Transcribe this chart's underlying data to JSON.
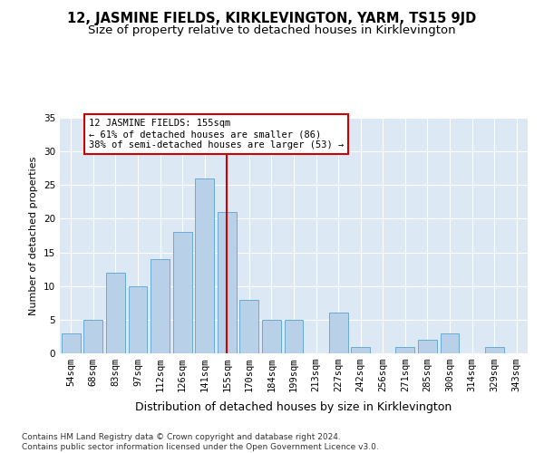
{
  "title": "12, JASMINE FIELDS, KIRKLEVINGTON, YARM, TS15 9JD",
  "subtitle": "Size of property relative to detached houses in Kirklevington",
  "xlabel": "Distribution of detached houses by size in Kirklevington",
  "ylabel": "Number of detached properties",
  "categories": [
    "54sqm",
    "68sqm",
    "83sqm",
    "97sqm",
    "112sqm",
    "126sqm",
    "141sqm",
    "155sqm",
    "170sqm",
    "184sqm",
    "199sqm",
    "213sqm",
    "227sqm",
    "242sqm",
    "256sqm",
    "271sqm",
    "285sqm",
    "300sqm",
    "314sqm",
    "329sqm",
    "343sqm"
  ],
  "values": [
    3,
    5,
    12,
    10,
    14,
    18,
    26,
    21,
    8,
    5,
    5,
    0,
    6,
    1,
    0,
    1,
    2,
    3,
    0,
    1,
    0
  ],
  "bar_color": "#b8d0e8",
  "bar_edge_color": "#6aaad4",
  "vline_x": 7,
  "vline_color": "#cc0000",
  "annotation_text": "12 JASMINE FIELDS: 155sqm\n← 61% of detached houses are smaller (86)\n38% of semi-detached houses are larger (53) →",
  "annotation_box_color": "#ffffff",
  "annotation_box_edge": "#cc0000",
  "ylim": [
    0,
    35
  ],
  "yticks": [
    0,
    5,
    10,
    15,
    20,
    25,
    30,
    35
  ],
  "bg_color": "#dce9f5",
  "footer": "Contains HM Land Registry data © Crown copyright and database right 2024.\nContains public sector information licensed under the Open Government Licence v3.0.",
  "title_fontsize": 10.5,
  "subtitle_fontsize": 9.5,
  "xlabel_fontsize": 9,
  "ylabel_fontsize": 8,
  "tick_fontsize": 7.5,
  "annotation_fontsize": 7.5,
  "footer_fontsize": 6.5
}
